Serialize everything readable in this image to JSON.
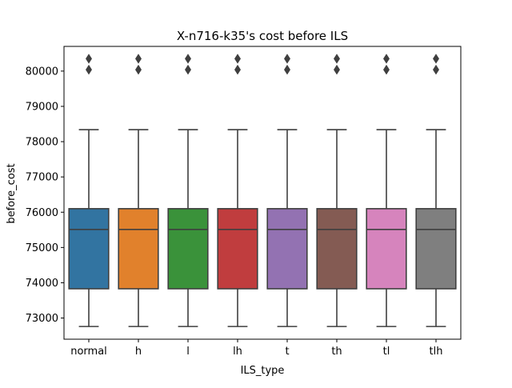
{
  "chart_data": {
    "type": "box",
    "title": "X-n716-k35's cost before ILS",
    "xlabel": "ILS_type",
    "ylabel": "before_cost",
    "categories": [
      "normal",
      "h",
      "l",
      "lh",
      "t",
      "th",
      "tl",
      "tlh"
    ],
    "colors": [
      "#3274a1",
      "#e1812c",
      "#3a923a",
      "#c03d3e",
      "#9372b2",
      "#845b53",
      "#d684bd",
      "#7f7f7f"
    ],
    "ylim": [
      72400,
      80700
    ],
    "yticks": [
      73000,
      74000,
      75000,
      76000,
      77000,
      78000,
      79000,
      80000
    ],
    "ytick_labels": [
      "73000",
      "74000",
      "75000",
      "76000",
      "77000",
      "78000",
      "79000",
      "80000"
    ],
    "grid": false,
    "legend": "none",
    "series": [
      {
        "category": "normal",
        "whisker_low": 72760,
        "q1": 73830,
        "median": 75510,
        "q3": 76100,
        "whisker_high": 78340,
        "outliers": [
          80040,
          80350
        ]
      },
      {
        "category": "h",
        "whisker_low": 72760,
        "q1": 73830,
        "median": 75510,
        "q3": 76100,
        "whisker_high": 78340,
        "outliers": [
          80040,
          80350
        ]
      },
      {
        "category": "l",
        "whisker_low": 72760,
        "q1": 73830,
        "median": 75510,
        "q3": 76100,
        "whisker_high": 78340,
        "outliers": [
          80040,
          80350
        ]
      },
      {
        "category": "lh",
        "whisker_low": 72760,
        "q1": 73830,
        "median": 75510,
        "q3": 76100,
        "whisker_high": 78340,
        "outliers": [
          80040,
          80350
        ]
      },
      {
        "category": "t",
        "whisker_low": 72760,
        "q1": 73830,
        "median": 75510,
        "q3": 76100,
        "whisker_high": 78340,
        "outliers": [
          80040,
          80350
        ]
      },
      {
        "category": "th",
        "whisker_low": 72760,
        "q1": 73830,
        "median": 75510,
        "q3": 76100,
        "whisker_high": 78340,
        "outliers": [
          80040,
          80350
        ]
      },
      {
        "category": "tl",
        "whisker_low": 72760,
        "q1": 73830,
        "median": 75510,
        "q3": 76100,
        "whisker_high": 78340,
        "outliers": [
          80040,
          80350
        ]
      },
      {
        "category": "tlh",
        "whisker_low": 72760,
        "q1": 73830,
        "median": 75510,
        "q3": 76100,
        "whisker_high": 78340,
        "outliers": [
          80040,
          80350
        ]
      }
    ]
  }
}
